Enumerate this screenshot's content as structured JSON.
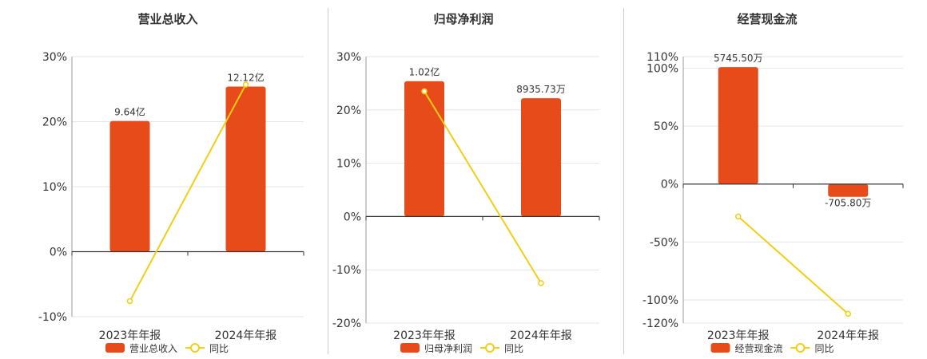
{
  "colors": {
    "bar": "#E84B1A",
    "line": "#F2CE14",
    "grid": "#E6E6E6",
    "axis": "#333333",
    "divider": "#CCCCCC"
  },
  "legend": {
    "line_label": "同比"
  },
  "chart_data": [
    {
      "type": "bar",
      "title": "营业总收入",
      "categories": [
        "2023年年报",
        "2024年年报"
      ],
      "ylim": [
        -10,
        30
      ],
      "yticks": [
        30,
        20,
        10,
        0,
        -10
      ],
      "tick_labels": [
        "30%",
        "20%",
        "10%",
        "0%",
        "-10%"
      ],
      "grid": true,
      "legend_position": "bottom",
      "series": [
        {
          "name": "营业总收入",
          "kind": "bar",
          "values": [
            20.1,
            25.4
          ],
          "labels": [
            "9.64亿",
            "12.12亿"
          ]
        },
        {
          "name": "同比",
          "kind": "line",
          "values": [
            -7.6,
            25.7
          ]
        }
      ]
    },
    {
      "type": "bar",
      "title": "归母净利润",
      "categories": [
        "2023年年报",
        "2024年年报"
      ],
      "ylim": [
        -20,
        30
      ],
      "yticks": [
        30,
        20,
        10,
        0,
        -10,
        -20
      ],
      "tick_labels": [
        "30%",
        "20%",
        "10%",
        "0%",
        "-10%",
        "-20%"
      ],
      "grid": true,
      "legend_position": "bottom",
      "series": [
        {
          "name": "归母净利润",
          "kind": "bar",
          "values": [
            25.4,
            22.2
          ],
          "labels": [
            "1.02亿",
            "8935.73万"
          ]
        },
        {
          "name": "同比",
          "kind": "line",
          "values": [
            23.5,
            -12.5
          ]
        }
      ]
    },
    {
      "type": "bar",
      "title": "经营现金流",
      "categories": [
        "2023年年报",
        "2024年年报"
      ],
      "ylim": [
        -120,
        110
      ],
      "yticks": [
        110,
        100,
        50,
        0,
        -50,
        -100,
        -120
      ],
      "tick_labels": [
        "110%",
        "100%",
        "50%",
        "0%",
        "-50%",
        "-100%",
        "-120%"
      ],
      "grid": true,
      "legend_position": "bottom",
      "series": [
        {
          "name": "经营现金流",
          "kind": "bar",
          "values": [
            101,
            -11
          ],
          "labels": [
            "5745.50万",
            "-705.80万"
          ]
        },
        {
          "name": "同比",
          "kind": "line",
          "values": [
            -28,
            -112
          ]
        }
      ]
    }
  ]
}
